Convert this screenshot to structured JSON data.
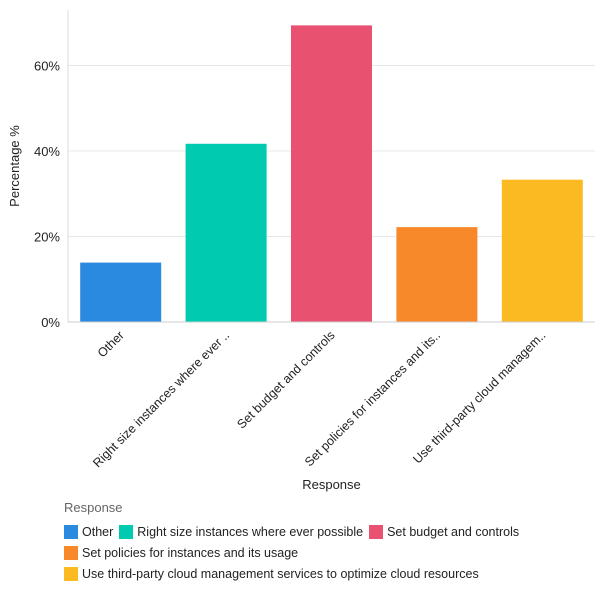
{
  "chart_data": {
    "type": "bar",
    "xlabel": "Response",
    "ylabel": "Percentage %",
    "ylim": [
      0,
      73
    ],
    "yticks": [
      0,
      20,
      40,
      60
    ],
    "ytick_labels": [
      "0%",
      "20%",
      "40%",
      "60%"
    ],
    "grid": true,
    "categories": [
      "Other",
      "Right size instances where ever possible",
      "Set budget and controls",
      "Set policies for instances and its usage",
      "Use third-party cloud management services to optimize cloud resources"
    ],
    "tick_labels": [
      "Other",
      "Right size instances where ever ..",
      "Set budget and controls",
      "Set policies for instances and its..",
      "Use third-party cloud managem.."
    ],
    "values": [
      13.9,
      41.7,
      69.4,
      22.2,
      33.3
    ],
    "colors": [
      "#2a8ae0",
      "#00cbb0",
      "#e8516f",
      "#f7892b",
      "#fcba22"
    ],
    "legend": {
      "title": "Response",
      "placement": "bottom-left"
    }
  }
}
